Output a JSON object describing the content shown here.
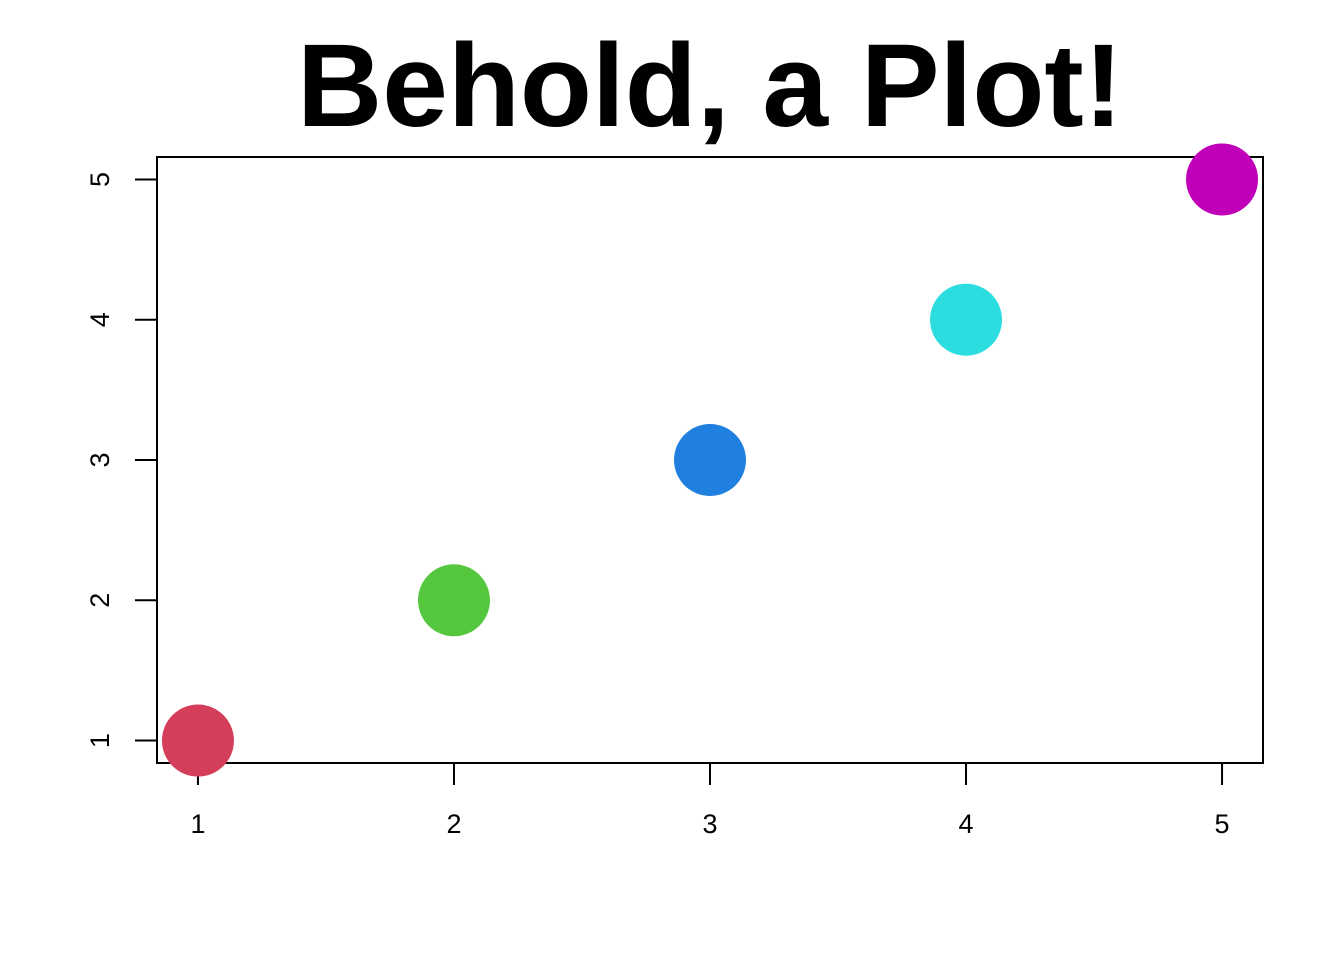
{
  "chart_data": {
    "type": "scatter",
    "title": "Behold, a Plot!",
    "xlabel": "",
    "ylabel": "",
    "x": [
      1,
      2,
      3,
      4,
      5
    ],
    "y": [
      1,
      2,
      3,
      4,
      5
    ],
    "point_colors": [
      "#D53E5B",
      "#55C73E",
      "#2080E0",
      "#2CDDE0",
      "#C000B8"
    ],
    "xlim": [
      0.84,
      5.16
    ],
    "ylim": [
      0.84,
      5.16
    ],
    "x_ticks": [
      "1",
      "2",
      "3",
      "4",
      "5"
    ],
    "y_ticks": [
      "1",
      "2",
      "3",
      "4",
      "5"
    ],
    "grid": false,
    "legend": "none"
  }
}
